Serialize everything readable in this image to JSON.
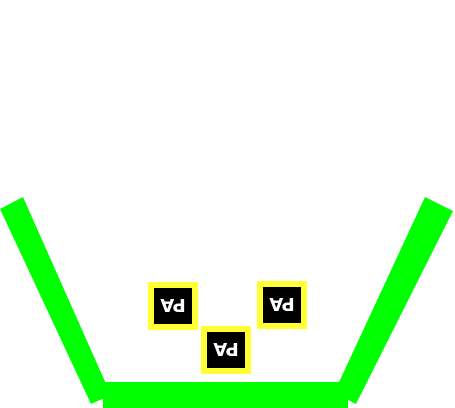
{
  "colors": {
    "background": "#ffffff",
    "container": "#00ff00",
    "box_fill": "#000000",
    "box_border": "#ffff33",
    "box_text": "#ffffff"
  },
  "boxes": [
    {
      "label": "PA"
    },
    {
      "label": "PA"
    },
    {
      "label": "PA"
    }
  ]
}
